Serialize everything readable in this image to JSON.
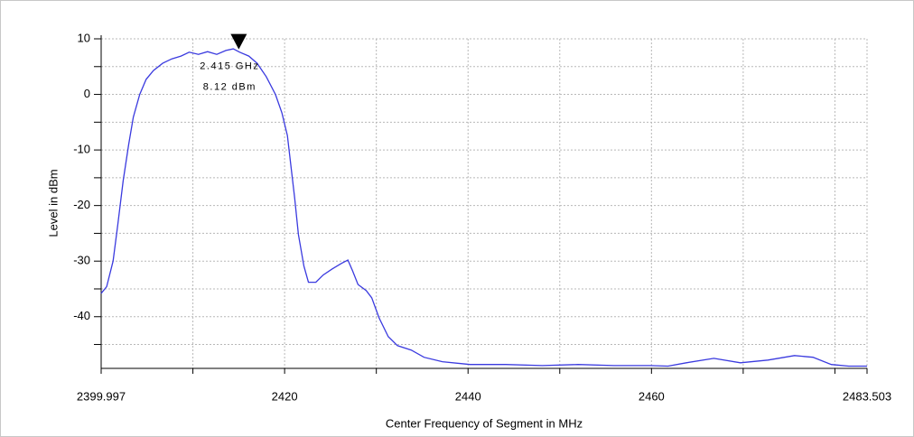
{
  "chart_data": {
    "type": "line",
    "ylabel": "Level in dBm",
    "xlabel": "Center Frequency of Segment in MHz",
    "xlim": [
      2399.997,
      2483.503
    ],
    "ylim": [
      -49.3,
      10
    ],
    "xticks": [
      2399.997,
      2420,
      2440,
      2460,
      2483.503
    ],
    "xminor": [
      2410,
      2430,
      2450,
      2470,
      2480
    ],
    "yticks": [
      10,
      0,
      -10,
      -20,
      -30,
      -40
    ],
    "yminor": [
      5,
      -5,
      -15,
      -25,
      -35,
      -45
    ],
    "grid": true,
    "series": [
      {
        "color": "#3a3adf",
        "x": [
          2399.997,
          2400.6,
          2401.3,
          2401.8,
          2402.4,
          2403.0,
          2403.5,
          2404.2,
          2404.9,
          2405.7,
          2406.7,
          2407.7,
          2408.7,
          2409.6,
          2410.6,
          2411.6,
          2412.6,
          2413.6,
          2414.4,
          2415.1,
          2416.1,
          2417.0,
          2418.0,
          2419.0,
          2419.7,
          2420.3,
          2420.7,
          2421.1,
          2421.5,
          2422.1,
          2422.6,
          2423.4,
          2424.2,
          2425.2,
          2426.2,
          2426.9,
          2427.4,
          2428.0,
          2428.9,
          2429.5,
          2430.3,
          2431.3,
          2432.3,
          2433.8,
          2435.2,
          2437.2,
          2440.2,
          2444.1,
          2448.1,
          2452.0,
          2455.9,
          2459.9,
          2461.8,
          2463.8,
          2466.8,
          2469.7,
          2472.7,
          2475.6,
          2477.6,
          2479.6,
          2481.5,
          2483.503
        ],
        "values": [
          -35.8,
          -34.6,
          -30,
          -23.6,
          -15.5,
          -9,
          -4.1,
          0,
          2.7,
          4.3,
          5.6,
          6.4,
          6.9,
          7.6,
          7.2,
          7.7,
          7.2,
          7.9,
          8.2,
          7.6,
          6.9,
          5.6,
          3.2,
          0,
          -3.3,
          -7.4,
          -13,
          -18.7,
          -25.2,
          -30.9,
          -33.8,
          -33.8,
          -32.5,
          -31.4,
          -30.4,
          -29.8,
          -31.7,
          -34.2,
          -35.3,
          -36.6,
          -40.2,
          -43.6,
          -45.2,
          -46,
          -47.3,
          -48.1,
          -48.6,
          -48.6,
          -48.8,
          -48.6,
          -48.8,
          -48.8,
          -48.9,
          -48.3,
          -47.5,
          -48.3,
          -47.8,
          -47,
          -47.3,
          -48.6,
          -48.9,
          -48.9
        ]
      }
    ],
    "marker": {
      "x": 2415,
      "y": 8.12,
      "labels": [
        "2.415 GHz",
        "8.12 dBm"
      ]
    }
  }
}
